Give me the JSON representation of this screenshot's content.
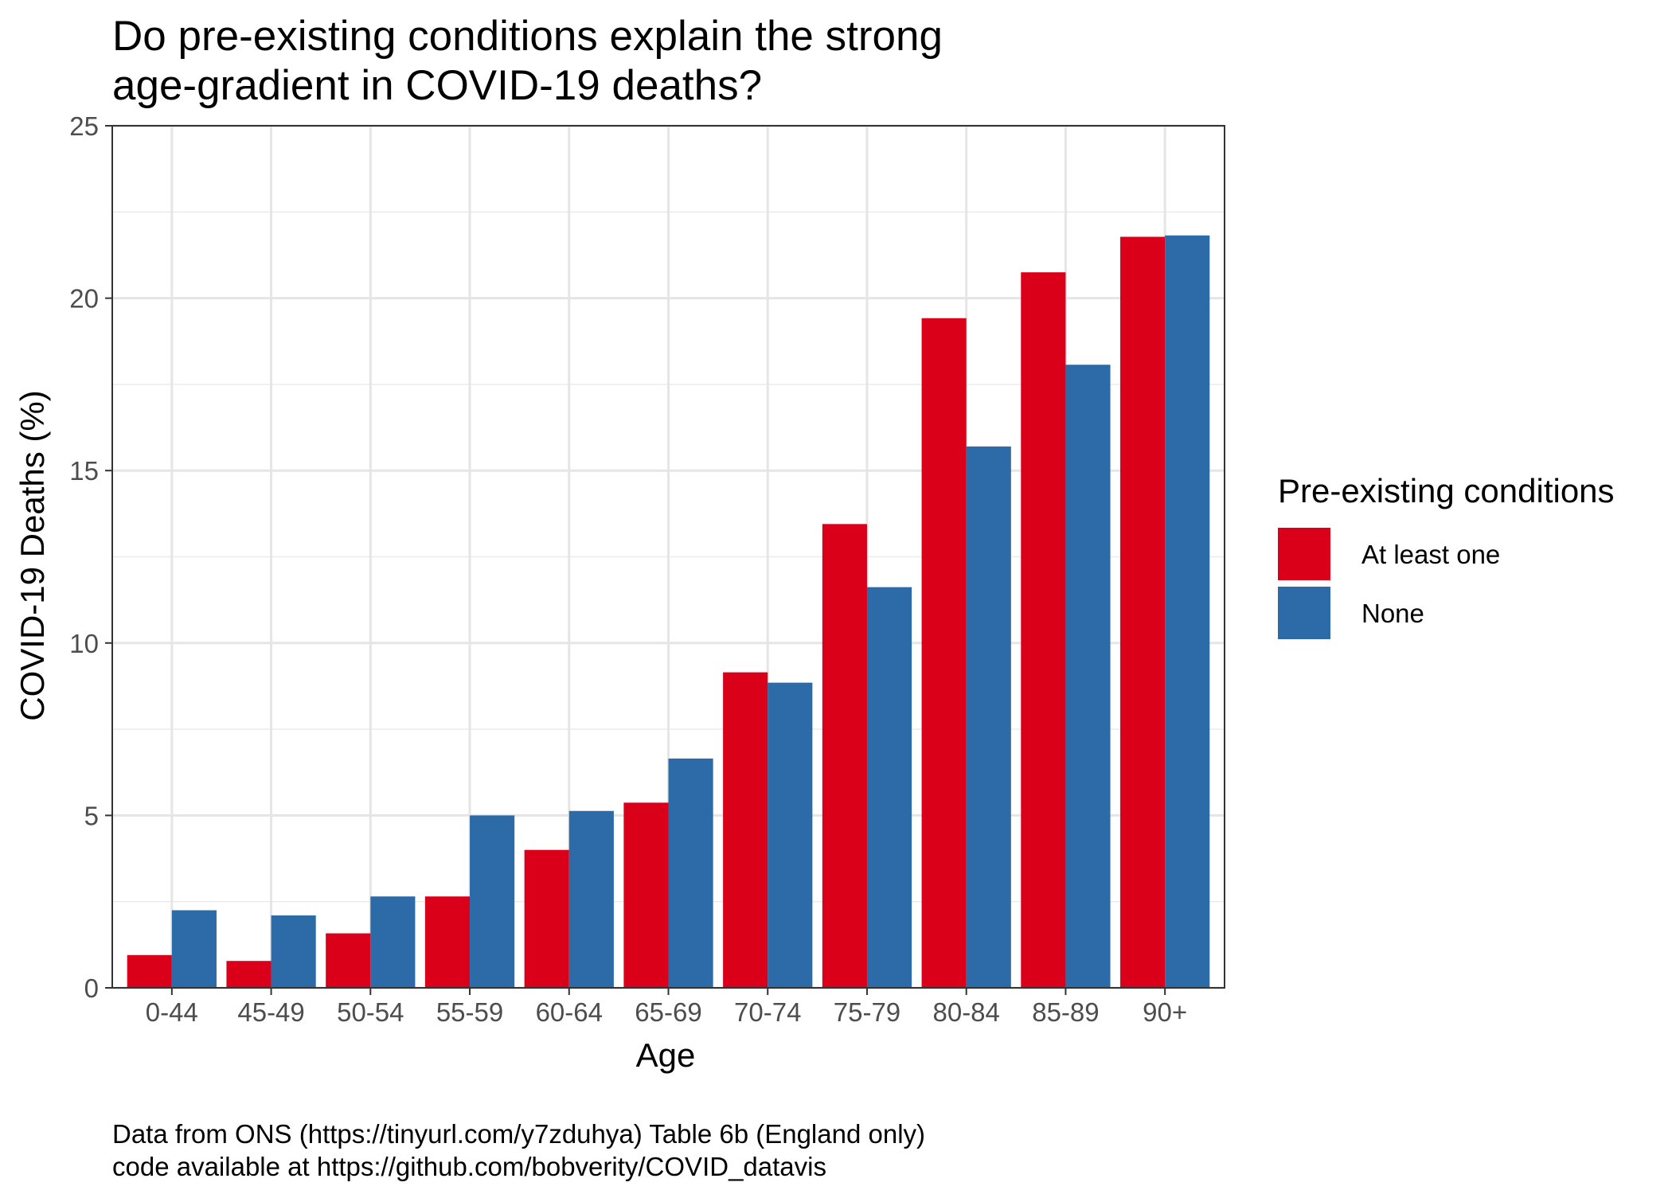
{
  "chart_data": {
    "type": "bar",
    "title": [
      "Do pre-existing conditions explain the strong",
      "age-gradient in COVID-19 deaths?"
    ],
    "xlabel": "Age",
    "ylabel": "COVID-19 Deaths (%)",
    "ylim": [
      0,
      25
    ],
    "yticks": [
      0,
      5,
      10,
      15,
      20,
      25
    ],
    "grid": true,
    "categories": [
      "0-44",
      "45-49",
      "50-54",
      "55-59",
      "60-64",
      "65-69",
      "70-74",
      "75-79",
      "80-84",
      "85-89",
      "90+"
    ],
    "legend": {
      "title": "Pre-existing conditions",
      "placement": "right"
    },
    "series": [
      {
        "name": "At least one",
        "color": "#db0019",
        "values": [
          0.95,
          0.78,
          1.58,
          2.65,
          4.0,
          5.37,
          9.15,
          13.45,
          19.42,
          20.75,
          21.78
        ]
      },
      {
        "name": "None",
        "color": "#2d6aa8",
        "values": [
          2.25,
          2.1,
          2.65,
          5.0,
          5.13,
          6.65,
          8.85,
          11.62,
          15.7,
          18.07,
          21.82
        ]
      }
    ],
    "caption": [
      "Data from ONS (https://tinyurl.com/y7zduhya) Table 6b (England only)",
      "code available at https://github.com/bobverity/COVID_datavis"
    ]
  }
}
